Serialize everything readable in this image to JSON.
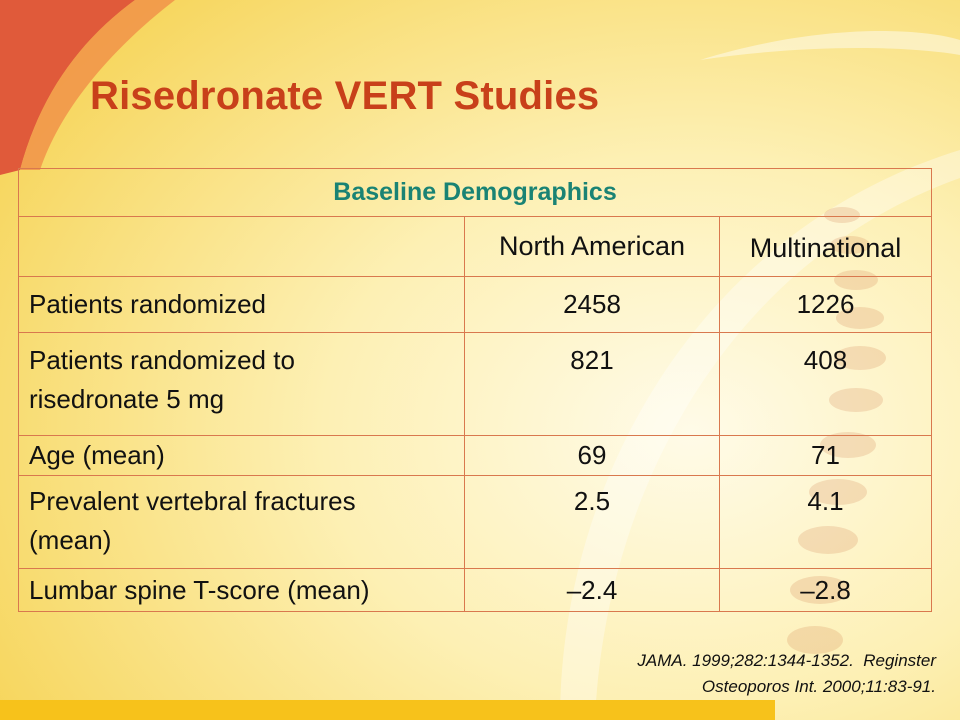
{
  "slide": {
    "title": "Risedronate VERT Studies"
  },
  "table": {
    "group_header": "Baseline Demographics",
    "columns": [
      "",
      "North American",
      "Multinational"
    ],
    "rows": [
      {
        "label": "Patients randomized",
        "north_american": "2458",
        "multinational": "1226"
      },
      {
        "label": "Patients randomized to risedronate 5 mg",
        "north_american": "821",
        "multinational": "408"
      },
      {
        "label": "Age (mean)",
        "north_american": "69",
        "multinational": "71"
      },
      {
        "label": "Prevalent vertebral fractures (mean)",
        "north_american": "2.5",
        "multinational": "4.1"
      },
      {
        "label": "Lumbar spine T-score (mean)",
        "north_american": "–2.4",
        "multinational": "–2.8"
      }
    ]
  },
  "citation": {
    "line1": "JAMA. 1999;282:1344-1352.  Reginster",
    "line2": "Osteoporos Int. 2000;11:83-91."
  },
  "colors": {
    "title": "#c8401a",
    "group_header": "#1a8374",
    "border": "#d9784e",
    "background": "#fbe88a",
    "accent_red": "#e05a3a"
  }
}
